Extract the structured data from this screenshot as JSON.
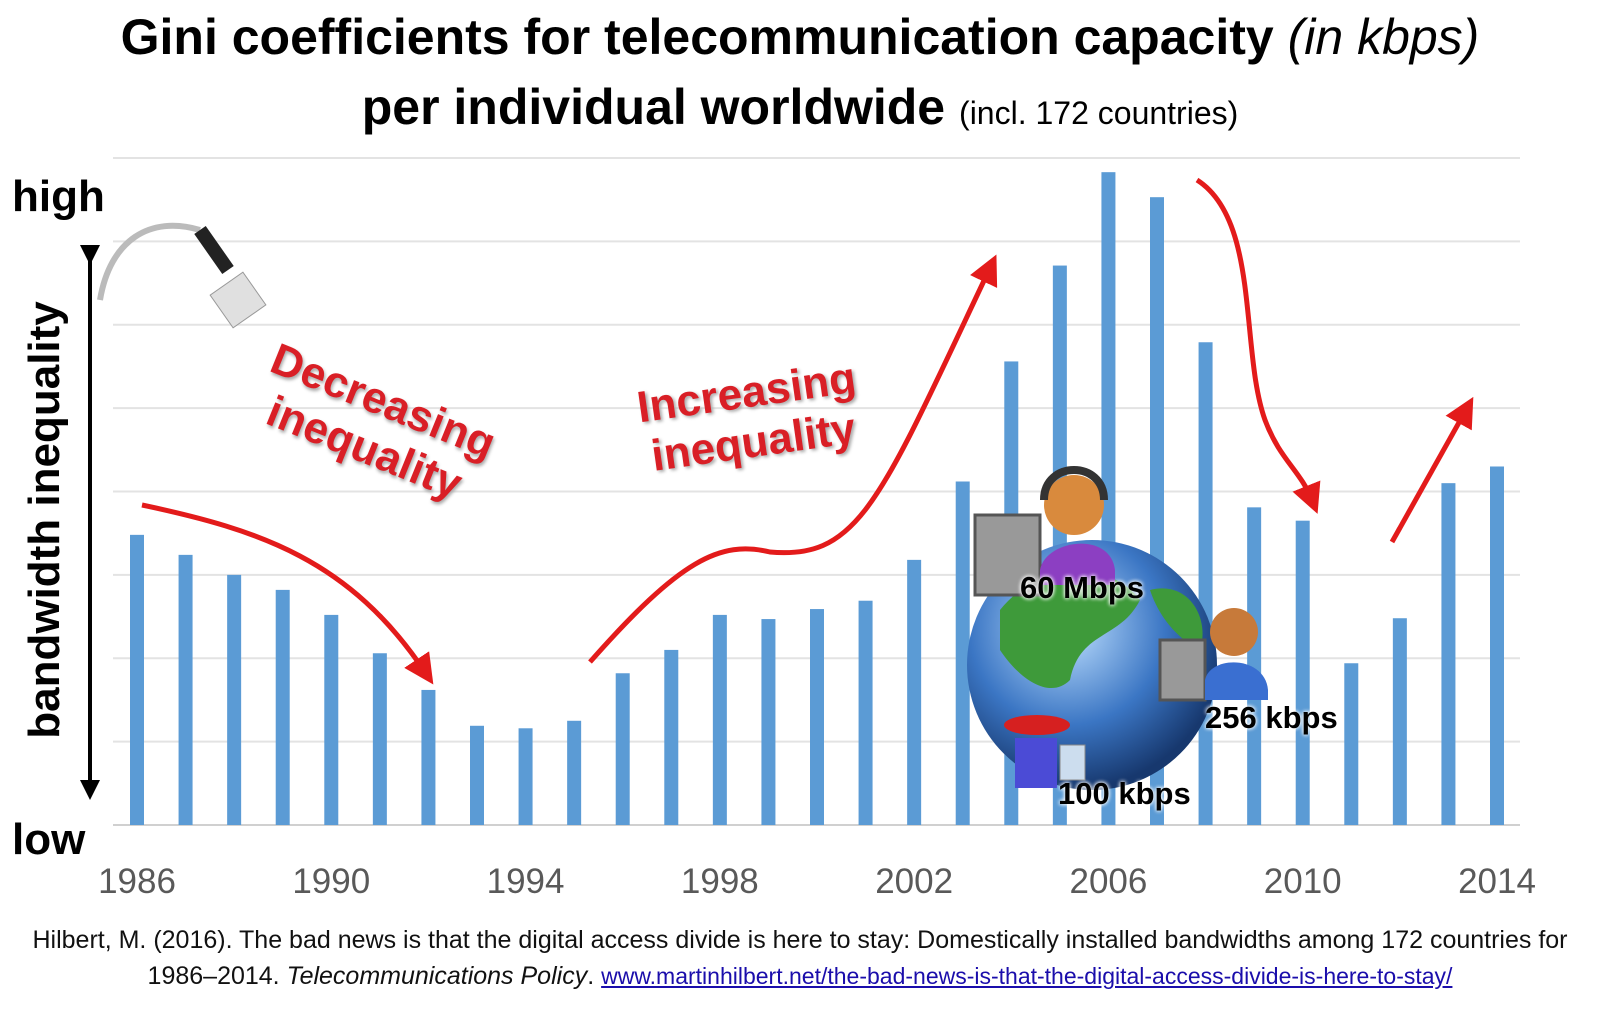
{
  "chart_data": {
    "type": "bar",
    "title": "Gini coefficients for telecommunication capacity",
    "title_italic": "(in kbps)",
    "title_line2": "per individual worldwide",
    "subtitle": "(incl. 172 countries)",
    "ylabel": "bandwidth inequality",
    "y_high_label": "high",
    "y_low_label": "low",
    "xlabel": "",
    "categories": [
      "1986",
      "1987",
      "1988",
      "1989",
      "1990",
      "1991",
      "1992",
      "1993",
      "1994",
      "1995",
      "1996",
      "1997",
      "1998",
      "1999",
      "2000",
      "2001",
      "2002",
      "2003",
      "2004",
      "2005",
      "2006",
      "2007",
      "2008",
      "2009",
      "2010",
      "2011",
      "2012",
      "2013",
      "2014"
    ],
    "values": [
      3.48,
      3.24,
      3.0,
      2.82,
      2.52,
      2.06,
      1.62,
      1.19,
      1.16,
      1.25,
      1.82,
      2.1,
      2.52,
      2.47,
      2.59,
      2.69,
      3.18,
      4.12,
      5.56,
      6.71,
      7.83,
      7.53,
      5.79,
      3.81,
      3.65,
      1.94,
      2.48,
      4.1,
      4.3
    ],
    "tick_labels": [
      "1986",
      "1990",
      "1994",
      "1998",
      "2002",
      "2006",
      "2010",
      "2014"
    ],
    "ylim": [
      0,
      8
    ],
    "grid": true,
    "bar_color": "#5b9bd5",
    "annotations": {
      "decreasing": [
        "Decreasing",
        "inequality"
      ],
      "increasing": [
        "Increasing",
        "inequality"
      ],
      "speed_high": "60 Mbps",
      "speed_mid": "256 kbps",
      "speed_low": "100 kbps"
    },
    "annotation_color": "#d91f26"
  },
  "citation": {
    "text": "Hilbert, M. (2016). The bad news is that the digital access divide is here to stay: Domestically installed bandwidths among 172 countries for 1986–2014.",
    "journal": "Telecommunications Policy",
    "link": "www.martinhilbert.net/the-bad-news-is-that-the-digital-access-divide-is-here-to-stay/"
  }
}
